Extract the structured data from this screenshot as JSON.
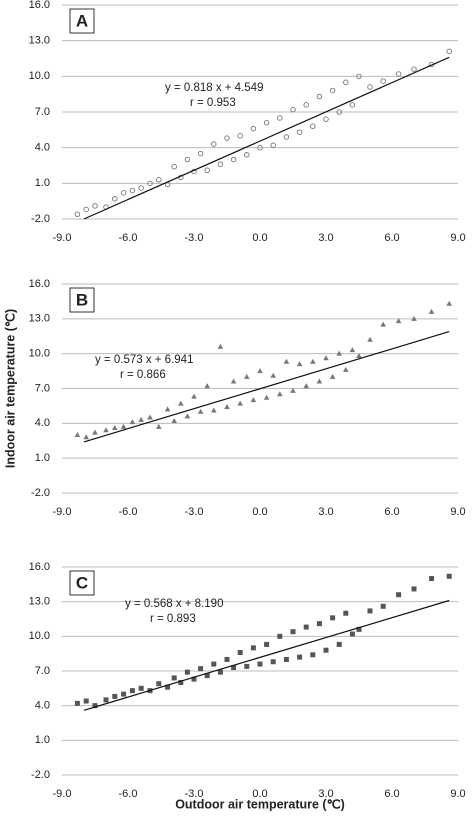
{
  "chart_data": [
    {
      "type": "scatter",
      "title": "A",
      "equation": "y = 0.818 x + 4.549",
      "r_label": "r = 0.953",
      "color": "#777777",
      "marker": "circle",
      "x": [
        -8.3,
        -7.9,
        -7.5,
        -7.0,
        -6.6,
        -6.2,
        -5.8,
        -5.4,
        -5.0,
        -4.6,
        -4.2,
        -3.9,
        -3.6,
        -3.3,
        -3.0,
        -2.7,
        -2.4,
        -2.1,
        -1.8,
        -1.5,
        -1.2,
        -0.9,
        -0.6,
        -0.3,
        0.0,
        0.3,
        0.6,
        0.9,
        1.2,
        1.5,
        1.8,
        2.1,
        2.4,
        2.7,
        3.0,
        3.3,
        3.6,
        3.9,
        4.2,
        4.5,
        5.0,
        5.6,
        6.3,
        7.0,
        7.8,
        8.6
      ],
      "values": [
        -1.6,
        -1.2,
        -0.9,
        -1.0,
        -0.3,
        0.2,
        0.4,
        0.6,
        1.0,
        1.3,
        0.9,
        2.4,
        1.5,
        3.0,
        2.0,
        3.5,
        2.1,
        4.3,
        2.6,
        4.8,
        3.0,
        5.0,
        3.4,
        5.6,
        4.0,
        6.1,
        4.2,
        6.5,
        4.9,
        7.2,
        5.3,
        7.6,
        5.8,
        8.3,
        6.4,
        8.8,
        7.0,
        9.5,
        7.6,
        10.0,
        9.1,
        9.6,
        10.2,
        10.6,
        11.0,
        12.1
      ],
      "trendline": {
        "x": [
          -8,
          8.6
        ],
        "values": [
          -2.0,
          11.6
        ]
      },
      "xlim": [
        -9,
        9
      ],
      "ylim": [
        -2,
        16
      ],
      "xticks": [
        {
          "value": -9,
          "label": "-9.0"
        },
        {
          "value": -6,
          "label": "-6.0"
        },
        {
          "value": -3,
          "label": "-3.0"
        },
        {
          "value": 0,
          "label": "0.0"
        },
        {
          "value": 3,
          "label": "3.0"
        },
        {
          "value": 6,
          "label": "6.0"
        },
        {
          "value": 9,
          "label": "9.0"
        }
      ],
      "yticks": [
        {
          "value": -2,
          "label": "-2.0"
        },
        {
          "value": 1,
          "label": "1.0"
        },
        {
          "value": 4,
          "label": "4.0"
        },
        {
          "value": 7,
          "label": "7.0"
        },
        {
          "value": 10,
          "label": "10.0"
        },
        {
          "value": 13,
          "label": "13.0"
        },
        {
          "value": 16,
          "label": "16.0"
        }
      ],
      "grid": true
    },
    {
      "type": "scatter",
      "title": "B",
      "equation": "y = 0.573 x + 6.941",
      "r_label": "r = 0.866",
      "ylabel": "Indoor air temperature (℃)",
      "color": "#777777",
      "marker": "triangle",
      "x": [
        -8.3,
        -7.9,
        -7.5,
        -7.0,
        -6.6,
        -6.2,
        -5.8,
        -5.4,
        -5.0,
        -4.6,
        -4.2,
        -3.9,
        -3.6,
        -3.3,
        -3.0,
        -2.7,
        -2.4,
        -2.1,
        -1.8,
        -1.5,
        -1.2,
        -0.9,
        -0.6,
        -0.3,
        0.0,
        0.3,
        0.6,
        0.9,
        1.2,
        1.5,
        1.8,
        2.1,
        2.4,
        2.7,
        3.0,
        3.3,
        3.6,
        3.9,
        4.2,
        4.5,
        5.0,
        5.6,
        6.3,
        7.0,
        7.8,
        8.6
      ],
      "values": [
        3.0,
        2.8,
        3.2,
        3.4,
        3.6,
        3.7,
        4.1,
        4.3,
        4.5,
        3.7,
        5.2,
        4.2,
        5.7,
        4.6,
        6.3,
        5.0,
        7.2,
        5.1,
        10.6,
        5.4,
        7.6,
        5.7,
        8.0,
        6.0,
        8.5,
        6.2,
        8.1,
        6.5,
        9.3,
        6.8,
        9.1,
        7.2,
        9.3,
        7.6,
        9.6,
        8.0,
        10.0,
        8.6,
        10.3,
        9.8,
        11.2,
        12.5,
        12.8,
        13.0,
        13.6,
        14.3
      ],
      "trendline": {
        "x": [
          -8,
          8.6
        ],
        "values": [
          2.4,
          11.9
        ]
      },
      "xlim": [
        -9,
        9
      ],
      "ylim": [
        -2,
        16
      ],
      "xticks": [
        {
          "value": -9,
          "label": "-9.0"
        },
        {
          "value": -6,
          "label": "-6.0"
        },
        {
          "value": -3,
          "label": "-3.0"
        },
        {
          "value": 0,
          "label": "0.0"
        },
        {
          "value": 3,
          "label": "3.0"
        },
        {
          "value": 6,
          "label": "6.0"
        },
        {
          "value": 9,
          "label": "9.0"
        }
      ],
      "yticks": [
        {
          "value": -2,
          "label": "-2.0"
        },
        {
          "value": 1,
          "label": "1.0"
        },
        {
          "value": 4,
          "label": "4.0"
        },
        {
          "value": 7,
          "label": "7.0"
        },
        {
          "value": 10,
          "label": "10.0"
        },
        {
          "value": 13,
          "label": "13.0"
        },
        {
          "value": 16,
          "label": "16.0"
        }
      ],
      "grid": true
    },
    {
      "type": "scatter",
      "title": "C",
      "equation": "y = 0.568 x + 8.190",
      "r_label": "r = 0.893",
      "xlabel": "Outdoor air temperature (℃)",
      "color": "#555555",
      "marker": "square",
      "x": [
        -8.3,
        -7.9,
        -7.5,
        -7.0,
        -6.6,
        -6.2,
        -5.8,
        -5.4,
        -5.0,
        -4.6,
        -4.2,
        -3.9,
        -3.6,
        -3.3,
        -3.0,
        -2.7,
        -2.4,
        -2.1,
        -1.8,
        -1.5,
        -1.2,
        -0.9,
        -0.6,
        -0.3,
        0.0,
        0.3,
        0.6,
        0.9,
        1.2,
        1.5,
        1.8,
        2.1,
        2.4,
        2.7,
        3.0,
        3.3,
        3.6,
        3.9,
        4.2,
        4.5,
        5.0,
        5.6,
        6.3,
        7.0,
        7.8,
        8.6
      ],
      "values": [
        4.2,
        4.4,
        4.0,
        4.5,
        4.8,
        5.0,
        5.3,
        5.5,
        5.3,
        5.9,
        5.6,
        6.4,
        6.0,
        6.9,
        6.3,
        7.2,
        6.6,
        7.6,
        6.9,
        8.0,
        7.3,
        8.6,
        7.4,
        9.0,
        7.6,
        9.3,
        7.8,
        10.0,
        8.0,
        10.4,
        8.2,
        10.8,
        8.4,
        11.1,
        8.8,
        11.6,
        9.3,
        12.0,
        10.2,
        10.6,
        12.2,
        12.6,
        13.6,
        14.1,
        15.0,
        15.2
      ],
      "trendline": {
        "x": [
          -8,
          8.6
        ],
        "values": [
          3.6,
          13.1
        ]
      },
      "xlim": [
        -9,
        9
      ],
      "ylim": [
        -2,
        16
      ],
      "xticks": [
        {
          "value": -9,
          "label": "-9.0"
        },
        {
          "value": -6,
          "label": "-6.0"
        },
        {
          "value": -3,
          "label": "-3.0"
        },
        {
          "value": 0,
          "label": "0.0"
        },
        {
          "value": 3,
          "label": "3.0"
        },
        {
          "value": 6,
          "label": "6.0"
        },
        {
          "value": 9,
          "label": "9.0"
        }
      ],
      "yticks": [
        {
          "value": -2,
          "label": "-2.0"
        },
        {
          "value": 1,
          "label": "1.0"
        },
        {
          "value": 4,
          "label": "4.0"
        },
        {
          "value": 7,
          "label": "7.0"
        },
        {
          "value": 10,
          "label": "10.0"
        },
        {
          "value": 13,
          "label": "13.0"
        },
        {
          "value": 16,
          "label": "16.0"
        }
      ],
      "grid": true
    }
  ]
}
